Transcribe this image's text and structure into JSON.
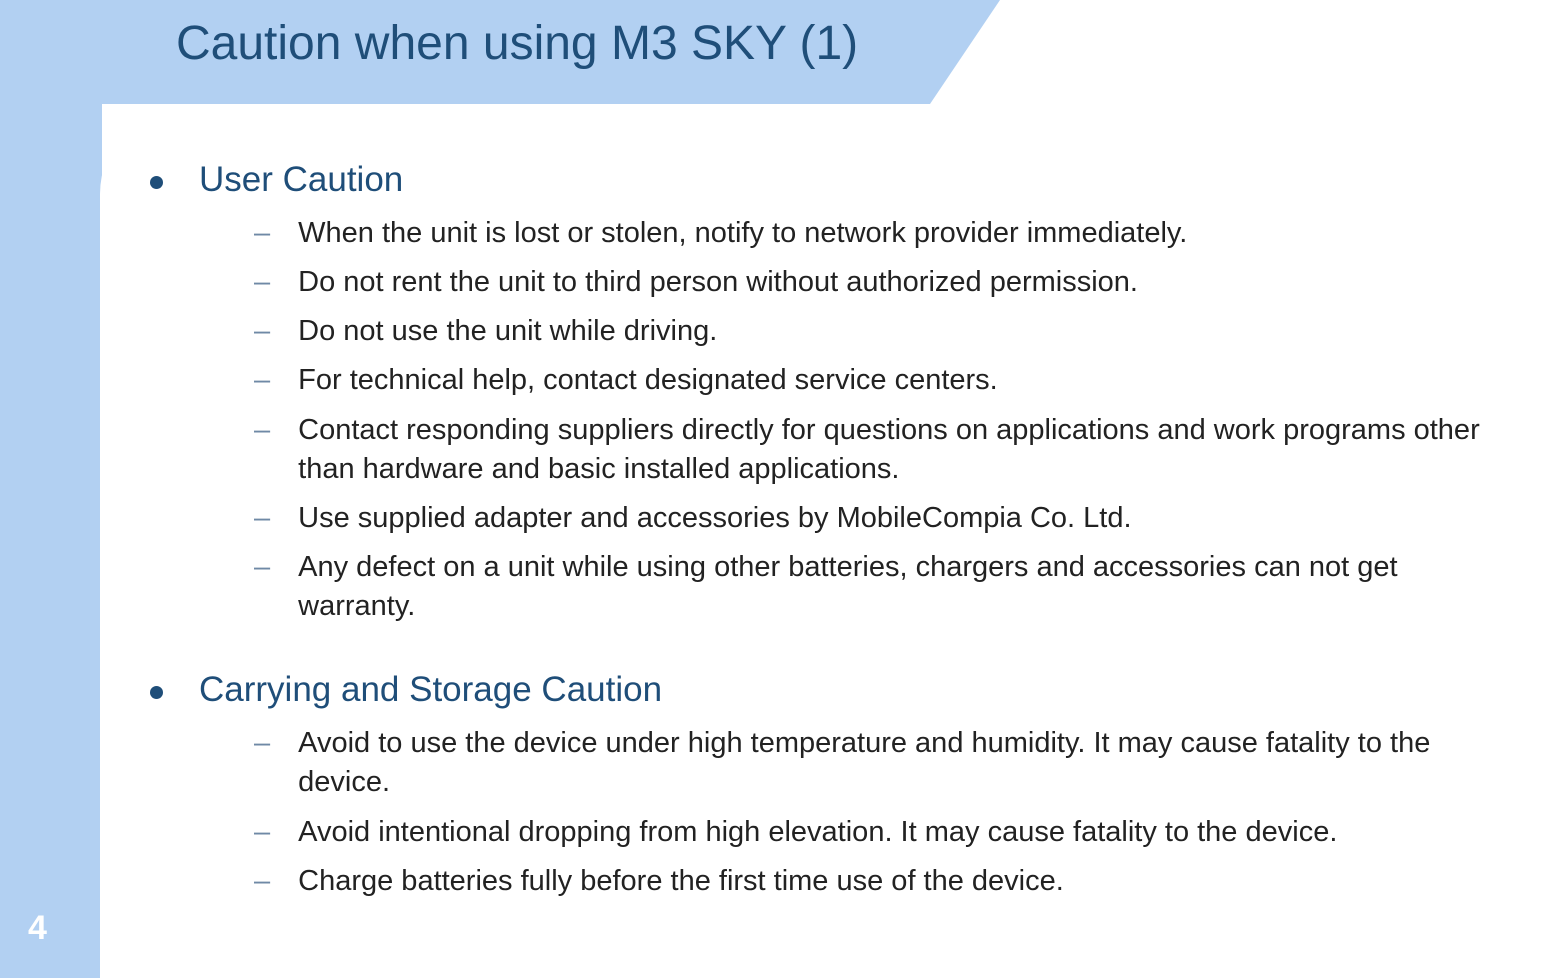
{
  "slide": {
    "page_number": "4",
    "title": "Caution when using M3 SKY (1)",
    "title_color": "#1f4e79",
    "header_bg_color": "#b2d0f2",
    "left_band_color": "#b2d0f2",
    "page_number_color": "#ffffff",
    "body_text_color": "#222222",
    "dash_color": "#6f89a6"
  },
  "sections": [
    {
      "heading": "User Caution",
      "items": [
        "When the unit is lost or stolen, notify to network provider immediately.",
        "Do not rent the unit to third person without authorized permission.",
        "Do not use the unit while driving.",
        "For technical help, contact designated service centers.",
        "Contact responding suppliers directly for questions on applications and work programs other than hardware and basic installed applications.",
        "Use supplied adapter and accessories by MobileCompia Co. Ltd.",
        "Any defect on a unit while using other batteries, chargers and accessories can not get warranty."
      ]
    },
    {
      "heading": "Carrying and Storage Caution",
      "items": [
        "Avoid to use the device under high temperature and humidity. It may cause fatality to the device.",
        "Avoid intentional dropping from high elevation. It may cause fatality to the device.",
        "Charge batteries fully before the first time use of the device."
      ]
    }
  ]
}
